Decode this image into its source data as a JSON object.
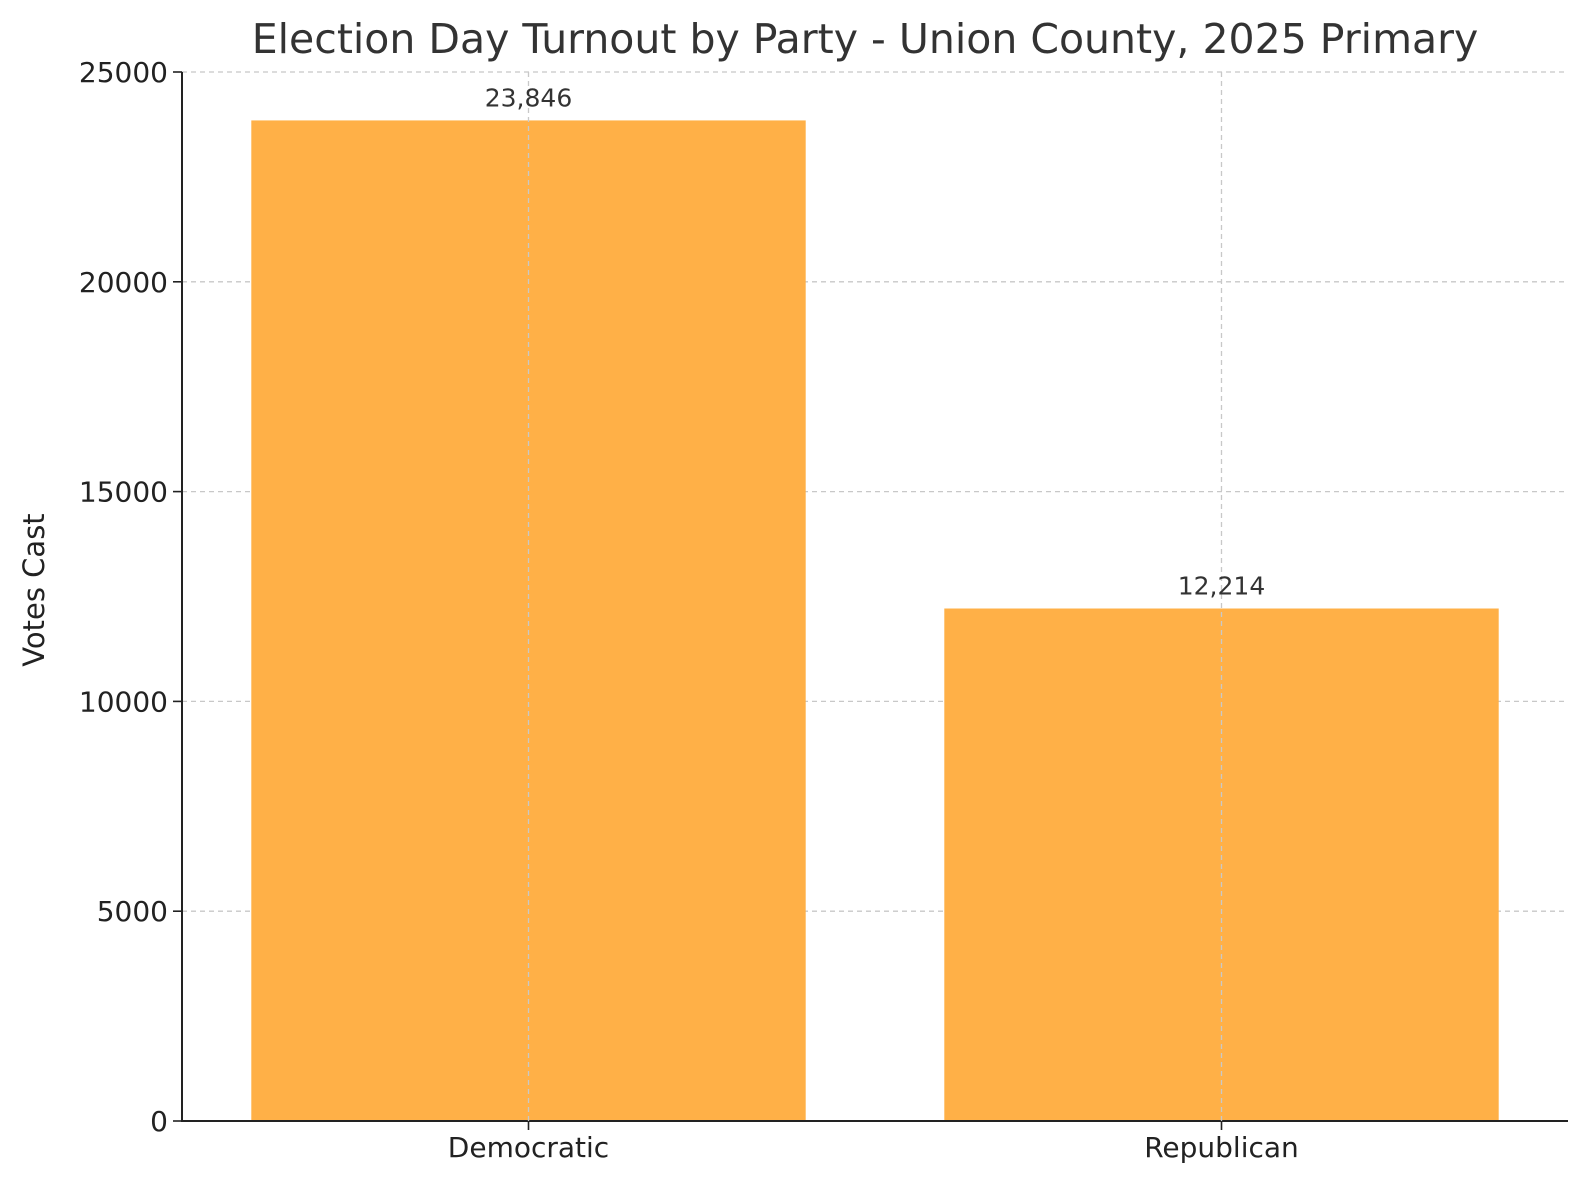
{
  "chart_data": {
    "type": "bar",
    "title": "Election Day Turnout by Party - Union County, 2025 Primary",
    "xlabel": "",
    "ylabel": "Votes Cast",
    "categories": [
      "Democratic",
      "Republican"
    ],
    "values": [
      23846,
      12214
    ],
    "data_labels": [
      "23,846",
      "12,214"
    ],
    "ylim": [
      0,
      25000
    ],
    "yticks": [
      0,
      5000,
      10000,
      15000,
      20000,
      25000
    ],
    "ytick_labels": [
      "0",
      "5000",
      "10000",
      "15000",
      "20000",
      "25000"
    ],
    "grid": true,
    "legend": false,
    "bar_color": "#FFB047"
  }
}
